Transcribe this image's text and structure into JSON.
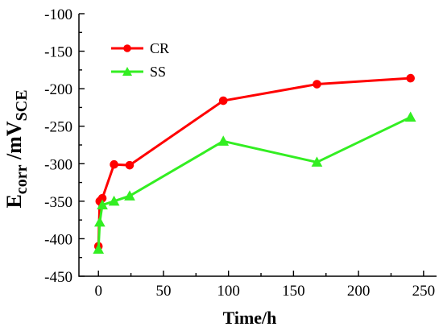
{
  "chart_data": {
    "type": "line",
    "title": "",
    "xlabel": "Time/h",
    "ylabel": {
      "base": "E",
      "subscript": "corr",
      "unit": " /mV",
      "unit_subscript": "SCE"
    },
    "xlim": [
      -15,
      260
    ],
    "ylim": [
      -450,
      -100
    ],
    "xticks": [
      0,
      50,
      100,
      150,
      200,
      250
    ],
    "yticks": [
      -450,
      -400,
      -350,
      -300,
      -250,
      -200,
      -150,
      -100
    ],
    "grid": false,
    "legend_position": "top-left",
    "series": [
      {
        "name": "CR",
        "color": "#ff0000",
        "marker": "circle",
        "x": [
          0,
          1,
          3,
          12,
          24,
          96,
          168,
          240
        ],
        "y": [
          -410,
          -350,
          -346,
          -301,
          -302,
          -216,
          -194,
          -186
        ]
      },
      {
        "name": "SS",
        "color": "#33ee22",
        "marker": "triangle",
        "x": [
          0,
          1,
          3,
          12,
          24,
          96,
          168,
          240
        ],
        "y": [
          -414,
          -378,
          -355,
          -350,
          -343,
          -270,
          -298,
          -238
        ]
      }
    ]
  }
}
